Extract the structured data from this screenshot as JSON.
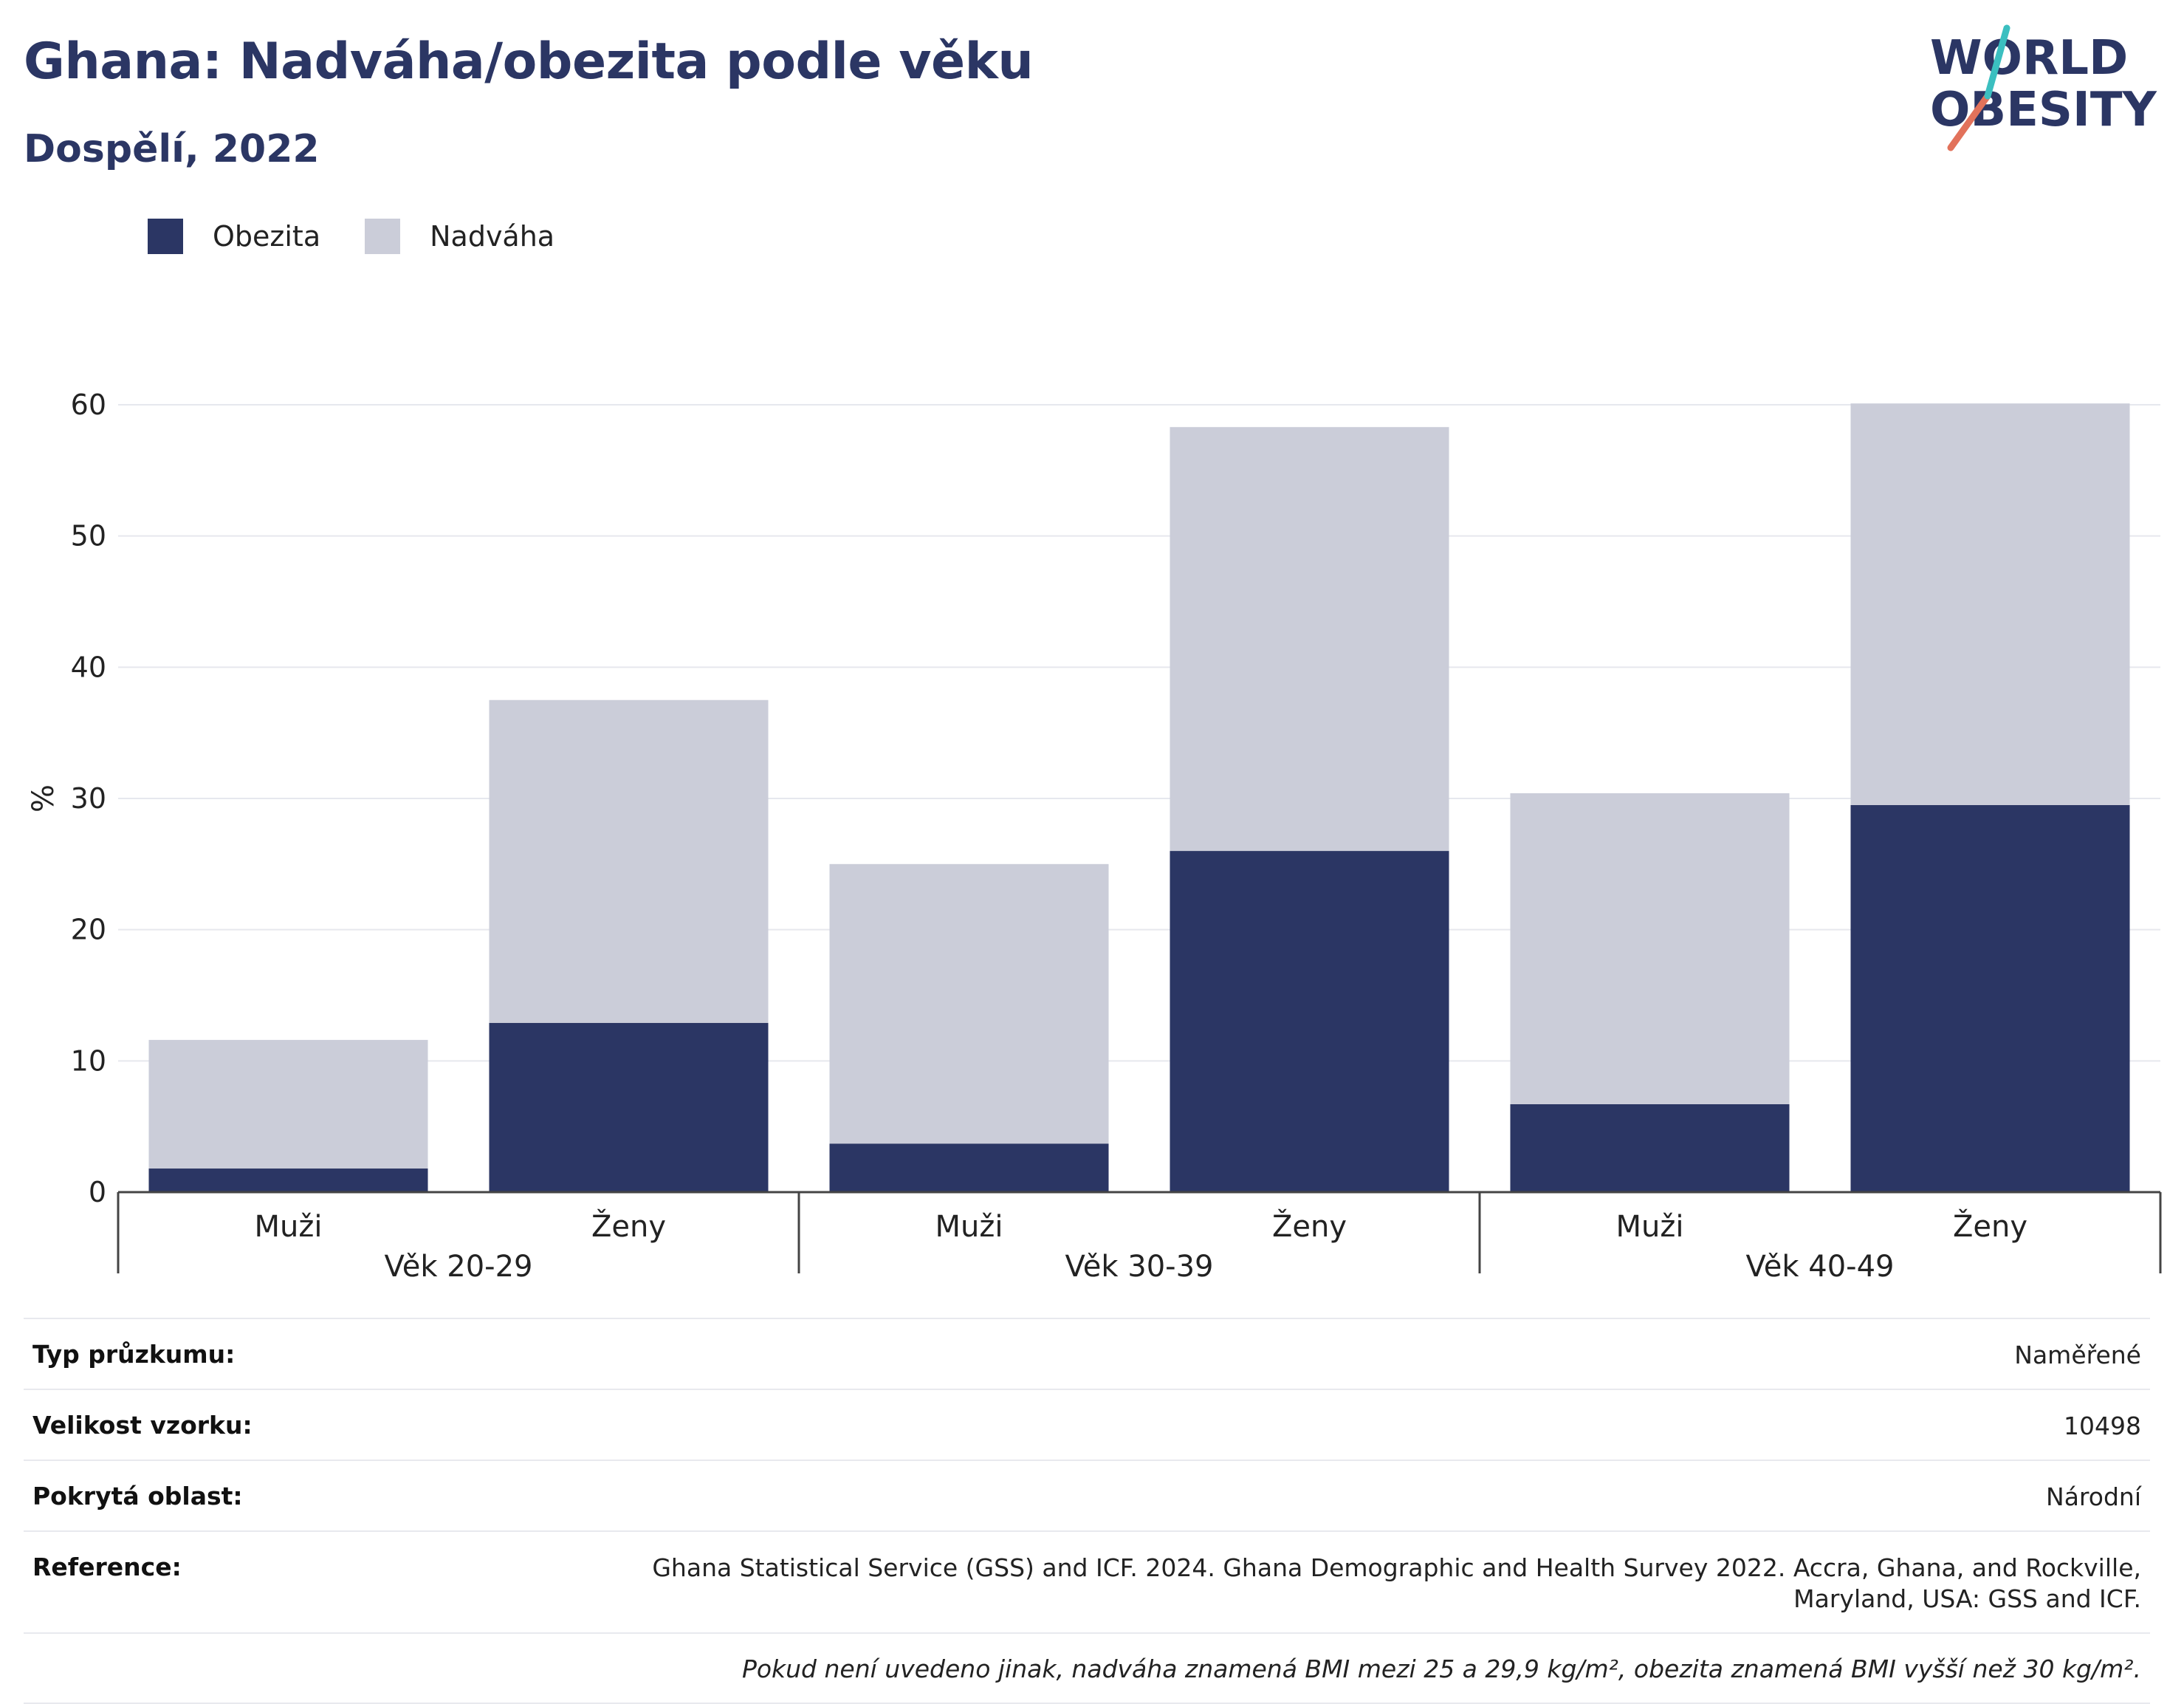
{
  "header": {
    "title": "Ghana: Nadváha/obezita podle věku",
    "subtitle": "Dospělí, 2022"
  },
  "logo": {
    "line1": "WORLD",
    "line2": "OBESITY"
  },
  "legend": {
    "items": [
      {
        "label": "Obezita",
        "color": "#2b3664"
      },
      {
        "label": "Nadváha",
        "color": "#cbcdd9"
      }
    ]
  },
  "chart_data": {
    "type": "bar",
    "stacked": true,
    "ylabel": "%",
    "ylim": [
      0,
      60
    ],
    "yticks": [
      0,
      10,
      20,
      30,
      40,
      50,
      60
    ],
    "groups": [
      "Věk 20-29",
      "Věk 30-39",
      "Věk 40-49"
    ],
    "categories": [
      "Muži",
      "Ženy",
      "Muži",
      "Ženy",
      "Muži",
      "Ženy"
    ],
    "series": [
      {
        "name": "Obezita",
        "color": "#2b3664",
        "values": [
          1.8,
          12.9,
          3.7,
          26.0,
          6.7,
          29.5
        ]
      },
      {
        "name": "Nadváha",
        "color": "#cbcdd9",
        "values": [
          9.8,
          24.6,
          21.3,
          32.3,
          23.7,
          30.6
        ]
      }
    ],
    "grid": true,
    "legend_position": "top-left"
  },
  "info": {
    "rows": [
      {
        "label": "Typ průzkumu:",
        "value": "Naměřené"
      },
      {
        "label": "Velikost vzorku:",
        "value": "10498"
      },
      {
        "label": "Pokrytá oblast:",
        "value": "Národní"
      },
      {
        "label": "Reference:",
        "value": "Ghana Statistical Service (GSS) and ICF. 2024. Ghana Demographic and Health Survey 2022. Accra, Ghana, and Rockville, Maryland, USA: GSS and ICF."
      }
    ],
    "note": "Pokud není uvedeno jinak, nadváha znamená BMI mezi 25 a 29,9 kg/m², obezita znamená BMI vyšší než 30 kg/m²."
  }
}
